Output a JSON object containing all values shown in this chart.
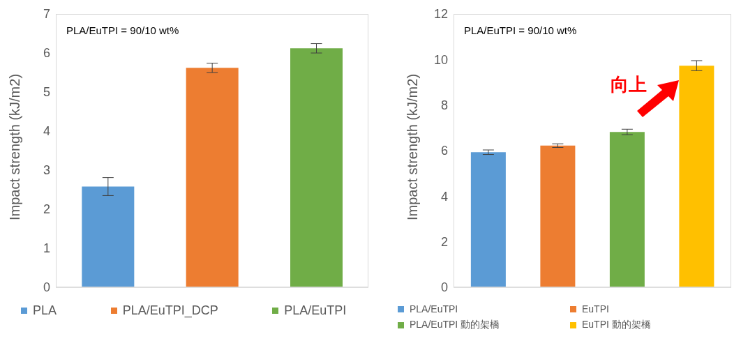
{
  "chart_data": [
    {
      "type": "bar",
      "stacked": true,
      "categories": [
        null,
        null,
        null
      ],
      "ylabel": "Impact strength (kJ/m2)",
      "ylim": [
        0,
        7
      ],
      "yticks": [
        0,
        1,
        2,
        3,
        4,
        5,
        6,
        7
      ],
      "grid": false,
      "legend": "bottom",
      "annotations": [
        "PLA/EuTPI = 90/10 wt%"
      ],
      "series": [
        {
          "name": "PLA",
          "color": "#5b9bd5",
          "values": [
            2.58,
            null,
            null
          ],
          "errors": [
            0.23,
            null,
            null
          ]
        },
        {
          "name": "PLA/EuTPI_DCP",
          "color": "#ed7d31",
          "values": [
            null,
            5.62,
            null
          ],
          "errors": [
            null,
            0.12,
            null
          ]
        },
        {
          "name": "PLA/EuTPI",
          "color": "#70ad47",
          "values": [
            null,
            null,
            6.12
          ],
          "errors": [
            null,
            null,
            0.12
          ]
        }
      ]
    },
    {
      "type": "bar",
      "stacked": true,
      "categories": [
        null,
        null,
        null,
        null
      ],
      "ylabel": "Impact strength (kJ/m2)",
      "ylim": [
        0,
        12
      ],
      "yticks": [
        0,
        2,
        4,
        6,
        8,
        10,
        12
      ],
      "grid": false,
      "legend": "bottom",
      "annotations": [
        "PLA/EuTPI = 90/10 wt%",
        "向上"
      ],
      "series": [
        {
          "name": "PLA/EuTPI",
          "color": "#5b9bd5",
          "values": [
            5.93,
            null,
            null,
            null
          ],
          "errors": [
            0.1,
            null,
            null,
            null
          ]
        },
        {
          "name": "EuTPI",
          "color": "#ed7d31",
          "values": [
            null,
            6.22,
            null,
            null
          ],
          "errors": [
            null,
            0.08,
            null,
            null
          ]
        },
        {
          "name": "PLA/EuTPI 動的架橋",
          "color": "#70ad47",
          "values": [
            null,
            null,
            6.82,
            null
          ],
          "errors": [
            null,
            null,
            0.12,
            null
          ]
        },
        {
          "name": "EuTPI 動的架橋",
          "color": "#ffc000",
          "values": [
            null,
            null,
            null,
            9.73
          ],
          "errors": [
            null,
            null,
            null,
            0.22
          ]
        }
      ]
    }
  ]
}
